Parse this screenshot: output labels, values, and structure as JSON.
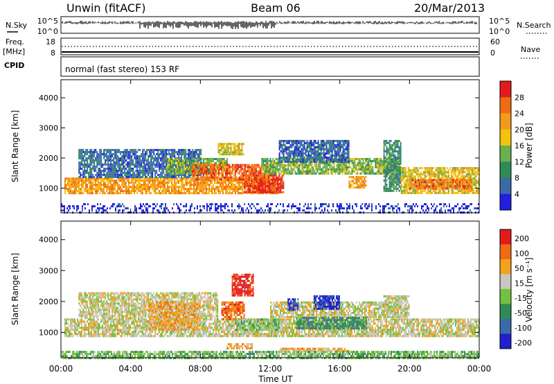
{
  "header": {
    "station": "Unwin (fitACF)",
    "beam": "Beam 06",
    "date": "20/Mar/2013"
  },
  "status_panels": {
    "nsky_label": "N.Sky",
    "nsky_ticks": [
      "10^5",
      "10^0"
    ],
    "nsearch_label": "N.Search",
    "nsearch_ticks": [
      "10^5",
      "10^0"
    ],
    "freq_label_1": "Freq.",
    "freq_label_2": "[MHz]",
    "freq_ticks": [
      "18",
      "8"
    ],
    "nave_label": "Nave",
    "nave_ticks": [
      "60",
      "0"
    ],
    "cpid_label": "CPID",
    "cpid_text": "normal (fast stereo) 153 RF"
  },
  "chart_data": [
    {
      "type": "heatmap",
      "panel": "power",
      "ylabel": "Slant Range [km]",
      "ylim": [
        180,
        4600
      ],
      "yticks": [
        "1000",
        "2000",
        "3000",
        "4000"
      ],
      "xlim_hours": [
        0,
        24
      ],
      "xticks": [
        "00:00",
        "04:00",
        "08:00",
        "12:00",
        "16:00",
        "20:00",
        "00:00"
      ],
      "xlabel": "Time UT",
      "colorbar": {
        "label": "Power [dB]",
        "ticks": [
          "4",
          "8",
          "12",
          "16",
          "20",
          "24",
          "28"
        ],
        "colors": [
          "#2020e0",
          "#3a6aa8",
          "#2e8b57",
          "#6ab04c",
          "#f4c20d",
          "#f49a1a",
          "#ef6b12",
          "#e41a1c"
        ]
      },
      "regions": [
        {
          "t0": 0.2,
          "t1": 12.5,
          "r0": 850,
          "r1": 1350,
          "level": 5
        },
        {
          "t0": 1.0,
          "t1": 8.0,
          "r0": 1350,
          "r1": 2300,
          "level": 1
        },
        {
          "t0": 6.0,
          "t1": 9.5,
          "r0": 1500,
          "r1": 2000,
          "level": 3
        },
        {
          "t0": 10.5,
          "t1": 12.8,
          "r0": 850,
          "r1": 1450,
          "level": 7
        },
        {
          "t0": 7.5,
          "t1": 12.0,
          "r0": 1300,
          "r1": 1800,
          "level": 6
        },
        {
          "t0": 9.0,
          "t1": 10.5,
          "r0": 2100,
          "r1": 2500,
          "level": 4
        },
        {
          "t0": 11.5,
          "t1": 19.5,
          "r0": 1500,
          "r1": 2000,
          "level": 3
        },
        {
          "t0": 12.5,
          "t1": 16.5,
          "r0": 1900,
          "r1": 2600,
          "level": 1
        },
        {
          "t0": 16.5,
          "t1": 17.5,
          "r0": 1000,
          "r1": 1400,
          "level": 5
        },
        {
          "t0": 18.5,
          "t1": 19.5,
          "r0": 900,
          "r1": 2600,
          "level": 2
        },
        {
          "t0": 19.5,
          "t1": 24.0,
          "r0": 850,
          "r1": 1700,
          "level": 4
        },
        {
          "t0": 20.0,
          "t1": 23.5,
          "r0": 1000,
          "r1": 1300,
          "level": 6
        },
        {
          "t0": 0.0,
          "t1": 24.0,
          "r0": 180,
          "r1": 500,
          "level": 0
        }
      ]
    },
    {
      "type": "heatmap",
      "panel": "velocity",
      "ylabel": "Slant Range [km]",
      "ylim": [
        180,
        4600
      ],
      "yticks": [
        "1000",
        "2000",
        "3000",
        "4000"
      ],
      "xlim_hours": [
        0,
        24
      ],
      "xticks": [
        "00:00",
        "04:00",
        "08:00",
        "12:00",
        "16:00",
        "20:00",
        "00:00"
      ],
      "xlabel": "Time UT",
      "colorbar": {
        "label": "Velocity [m s⁻¹]",
        "ticks": [
          "200",
          "100",
          "50",
          "15",
          "-15",
          "-50",
          "-100",
          "-200"
        ],
        "colors": [
          "#2020d0",
          "#3a6aa8",
          "#2e8b57",
          "#72c23e",
          "#c8c8c0",
          "#f4a21a",
          "#f06a12",
          "#e41a1c"
        ]
      },
      "regions": [
        {
          "t0": 0.2,
          "t1": 24.0,
          "r0": 850,
          "r1": 1450,
          "level": 4
        },
        {
          "t0": 1.0,
          "t1": 9.0,
          "r0": 1450,
          "r1": 2300,
          "level": 4
        },
        {
          "t0": 5.0,
          "t1": 8.0,
          "r0": 1100,
          "r1": 2000,
          "level": 5
        },
        {
          "t0": 9.2,
          "t1": 10.5,
          "r0": 1400,
          "r1": 2000,
          "level": 6
        },
        {
          "t0": 9.8,
          "t1": 11.0,
          "r0": 2200,
          "r1": 2900,
          "level": 7
        },
        {
          "t0": 10.0,
          "t1": 12.5,
          "r0": 1050,
          "r1": 1450,
          "level": 3
        },
        {
          "t0": 12.0,
          "t1": 19.5,
          "r0": 1500,
          "r1": 2000,
          "level": 4
        },
        {
          "t0": 13.0,
          "t1": 13.6,
          "r0": 1700,
          "r1": 2100,
          "level": 0
        },
        {
          "t0": 14.5,
          "t1": 16.0,
          "r0": 1750,
          "r1": 2200,
          "level": 0
        },
        {
          "t0": 13.5,
          "t1": 17.5,
          "r0": 1100,
          "r1": 1500,
          "level": 2
        },
        {
          "t0": 9.5,
          "t1": 11.0,
          "r0": 450,
          "r1": 650,
          "level": 5
        },
        {
          "t0": 12.5,
          "t1": 16.5,
          "r0": 400,
          "r1": 500,
          "level": 5
        },
        {
          "t0": 18.5,
          "t1": 20.0,
          "r0": 1500,
          "r1": 2200,
          "level": 4
        },
        {
          "t0": 0.0,
          "t1": 24.0,
          "r0": 180,
          "r1": 400,
          "level": 3
        }
      ]
    }
  ]
}
